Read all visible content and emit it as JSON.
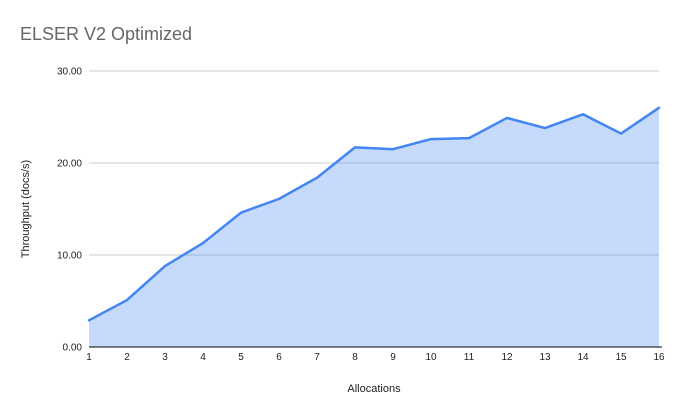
{
  "chart_data": {
    "type": "area",
    "title": "ELSER V2 Optimized",
    "xlabel": "Allocations",
    "ylabel": "Throughput (docs/s)",
    "categories": [
      "1",
      "2",
      "3",
      "4",
      "5",
      "6",
      "7",
      "8",
      "9",
      "10",
      "11",
      "12",
      "13",
      "14",
      "15",
      "16"
    ],
    "values": [
      2.9,
      5.1,
      8.8,
      11.3,
      14.6,
      16.1,
      18.4,
      21.7,
      21.5,
      22.6,
      22.7,
      24.9,
      23.8,
      25.3,
      23.2,
      26.0
    ],
    "ylim": [
      0,
      30
    ],
    "ytick_values": [
      0,
      10,
      20,
      30
    ],
    "ytick_labels": [
      "0.00",
      "10.00",
      "20.00",
      "30.00"
    ],
    "grid": true,
    "legend": false,
    "colors": {
      "line": "#4285f4",
      "fill_rgba": "rgba(66,133,244,0.3)",
      "fill_hex": "#c6dafb",
      "grid": "#cccccc",
      "axis": "#333333",
      "title": "#666666",
      "tick": "#222222",
      "background": "#ffffff"
    }
  }
}
